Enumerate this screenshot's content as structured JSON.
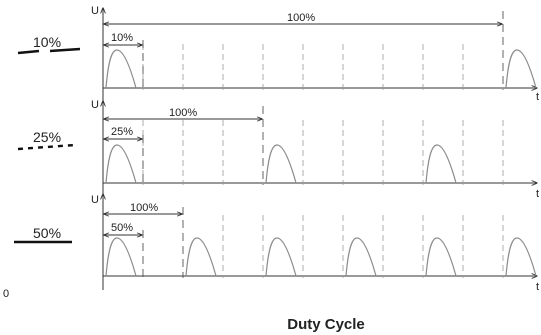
{
  "title": "Duty Cycle",
  "axis_y_label": "U",
  "axis_x_label": "t",
  "origin_label": "0",
  "panels": [
    {
      "legend": "10%",
      "on_label": "10%",
      "period_label": "100%"
    },
    {
      "legend": "25%",
      "on_label": "25%",
      "period_label": "100%"
    },
    {
      "legend": "50%",
      "on_label": "50%",
      "period_label": "100%"
    }
  ]
}
